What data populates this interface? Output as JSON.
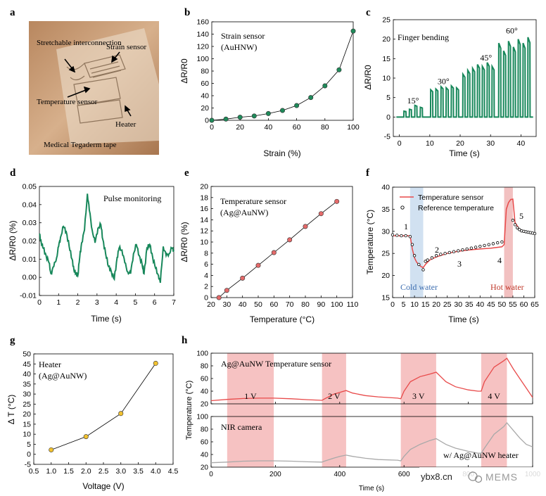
{
  "watermark": {
    "site": "ybx8.cn",
    "brand": "MEMS"
  },
  "chart_data": [
    {
      "panel": "a",
      "type": "photo",
      "labels": [
        "Stretchable interconnection",
        "Strain sensor",
        "Temperature sensor",
        "Heater",
        "Medical Tegaderm tape"
      ],
      "colors": {
        "skin": "#c9a27e",
        "tape": "#e8d7c2",
        "text": "#000000"
      }
    },
    {
      "panel": "b",
      "type": "scatter",
      "annotation": [
        "Strain sensor",
        "(AuHNW)"
      ],
      "xlabel": "Strain (%)",
      "ylabel": "ΔR/R0",
      "xlim": [
        0,
        100
      ],
      "ylim": [
        0,
        160
      ],
      "xticks": [
        0,
        20,
        40,
        60,
        80,
        100
      ],
      "yticks": [
        0,
        20,
        40,
        60,
        80,
        100,
        120,
        140,
        160
      ],
      "x": [
        0,
        10,
        20,
        30,
        40,
        50,
        60,
        70,
        80,
        90,
        100
      ],
      "y": [
        0,
        2,
        5,
        7,
        11,
        16,
        24,
        37,
        56,
        82,
        145
      ],
      "marker_color": "#1f8a5a"
    },
    {
      "panel": "c",
      "type": "line",
      "annotation": "Finger bending",
      "xlabel": "Time (s)",
      "ylabel": "ΔR/R0",
      "xlim": [
        -2,
        45
      ],
      "ylim": [
        -5,
        25
      ],
      "xticks": [
        0,
        10,
        20,
        30,
        40
      ],
      "yticks": [
        -5,
        0,
        5,
        10,
        15,
        20,
        25
      ],
      "angles": [
        {
          "label": "15°",
          "t": 4.5,
          "v": 3.5
        },
        {
          "label": "30°",
          "t": 14.5,
          "v": 8.5
        },
        {
          "label": "45°",
          "t": 28.5,
          "v": 14.5
        },
        {
          "label": "60°",
          "t": 37,
          "v": 21.5
        }
      ],
      "pulses": [
        [
          1.8,
          1.5
        ],
        [
          3.6,
          2
        ],
        [
          5.4,
          3
        ],
        [
          7.2,
          2.5
        ],
        [
          10.6,
          7
        ],
        [
          12.3,
          7.2
        ],
        [
          14,
          7.8
        ],
        [
          15.7,
          7.5
        ],
        [
          17.4,
          8
        ],
        [
          19.1,
          7.5
        ],
        [
          21.2,
          11
        ],
        [
          22.8,
          12
        ],
        [
          24.4,
          12.5
        ],
        [
          26,
          13.5
        ],
        [
          27.6,
          13
        ],
        [
          29.2,
          14
        ],
        [
          30.8,
          13
        ],
        [
          33,
          19
        ],
        [
          34.6,
          17
        ],
        [
          36.2,
          19.5
        ],
        [
          37.8,
          18
        ],
        [
          39.4,
          20
        ],
        [
          41,
          19
        ],
        [
          42.6,
          20.5
        ]
      ],
      "line_color": "#17875a"
    },
    {
      "panel": "d",
      "type": "line",
      "annotation": "Pulse monitoring",
      "xlabel": "Time (s)",
      "ylabel": "ΔR/R0 (%)",
      "xlim": [
        0,
        7
      ],
      "ylim": [
        -0.01,
        0.05
      ],
      "xticks": [
        0,
        1,
        2,
        3,
        4,
        5,
        6,
        7
      ],
      "yticks": [
        -0.01,
        0.0,
        0.01,
        0.02,
        0.03,
        0.04,
        0.05
      ],
      "ytick_labels": [
        "-0.01",
        "0.00",
        "0.01",
        "0.02",
        "0.03",
        "0.04",
        "0.05"
      ],
      "x": [
        0,
        0.1,
        0.2,
        0.35,
        0.5,
        0.6,
        0.75,
        0.9,
        1.0,
        1.1,
        1.25,
        1.4,
        1.55,
        1.7,
        1.8,
        1.9,
        2.0,
        2.1,
        2.2,
        2.35,
        2.5,
        2.6,
        2.75,
        2.9,
        3.05,
        3.2,
        3.3,
        3.45,
        3.6,
        3.75,
        3.9,
        4.05,
        4.15,
        4.3,
        4.45,
        4.6,
        4.75,
        4.9,
        5.05,
        5.2,
        5.35,
        5.45,
        5.6,
        5.75,
        5.9,
        6.05,
        6.2,
        6.3,
        6.45,
        6.6,
        6.75,
        6.9,
        7.0
      ],
      "y": [
        0.024,
        0.019,
        0.016,
        0.012,
        0.008,
        0.002,
        0.006,
        0.011,
        0.017,
        0.022,
        0.028,
        0.025,
        0.017,
        0.01,
        0.004,
        0.002,
        0.001,
        0.011,
        0.019,
        0.026,
        0.046,
        0.037,
        0.026,
        0.019,
        0.027,
        0.029,
        0.021,
        0.013,
        0.006,
        0.003,
        -0.001,
        0.011,
        0.016,
        0.015,
        0.008,
        0.003,
        0.002,
        0.013,
        0.018,
        0.012,
        0.007,
        0.002,
        0.016,
        0.018,
        0.011,
        0.005,
        0.001,
        -0.003,
        0.017,
        0.012,
        0.013,
        0.016,
        0.015
      ],
      "line_color": "#17875a"
    },
    {
      "panel": "e",
      "type": "scatter",
      "annotation": [
        "Temperature sensor",
        "(Ag@AuNW)"
      ],
      "xlabel": "Temperature (°C)",
      "ylabel": "ΔR/R0 (%)",
      "xlim": [
        20,
        110
      ],
      "ylim": [
        0,
        20
      ],
      "xticks": [
        20,
        30,
        40,
        50,
        60,
        70,
        80,
        90,
        100,
        110
      ],
      "yticks": [
        0,
        2,
        4,
        6,
        8,
        10,
        12,
        14,
        16,
        18,
        20
      ],
      "x": [
        25,
        30,
        40,
        50,
        60,
        70,
        80,
        90,
        100
      ],
      "y": [
        0,
        1.3,
        3.5,
        5.8,
        8.1,
        10.4,
        12.8,
        15.1,
        17.3
      ],
      "marker_color": "#e46a6a"
    },
    {
      "panel": "f",
      "type": "line",
      "xlabel": "Time (s)",
      "ylabel": "Temperature (°C)",
      "xlim": [
        0,
        65
      ],
      "ylim": [
        15,
        40
      ],
      "xticks": [
        0,
        5,
        10,
        15,
        20,
        25,
        30,
        35,
        40,
        45,
        50,
        55,
        60,
        65
      ],
      "yticks": [
        15,
        20,
        25,
        30,
        35,
        40
      ],
      "legend": [
        "Temperature sensor",
        "Reference temperature"
      ],
      "regions": [
        {
          "label": "Cold water",
          "x0": 8,
          "x1": 14,
          "color": "#c6d9ee"
        },
        {
          "label": "Hot water",
          "x0": 51,
          "x1": 55,
          "color": "#efb2b2"
        }
      ],
      "markers": [
        "1",
        "2",
        "3",
        "4",
        "5"
      ],
      "sensor": {
        "x": [
          0,
          4,
          8,
          9,
          10,
          11,
          12,
          13,
          14,
          15,
          17,
          20,
          25,
          30,
          35,
          40,
          45,
          50,
          51,
          52,
          53,
          54,
          55,
          56,
          58,
          60,
          63,
          65
        ],
        "y": [
          29,
          29,
          29,
          26,
          24,
          23,
          22.5,
          22,
          21.8,
          22.5,
          23.5,
          24.2,
          25,
          25.5,
          25.8,
          26,
          26.2,
          26.5,
          27,
          35,
          36.5,
          37.2,
          37.3,
          32,
          30.5,
          30,
          29.6,
          29.5
        ]
      },
      "reference": {
        "x": [
          0,
          2,
          4,
          6,
          8,
          9,
          10,
          12,
          14,
          15,
          16,
          18,
          20,
          22,
          24,
          26,
          28,
          30,
          32,
          34,
          36,
          38,
          40,
          42,
          44,
          46,
          48,
          50,
          55,
          56,
          57,
          58,
          59,
          60,
          61,
          62,
          63,
          64,
          65
        ],
        "y": [
          29.2,
          29.1,
          29,
          29,
          28.8,
          27,
          24.5,
          22.5,
          21.3,
          23.2,
          23.5,
          24,
          24.5,
          24.8,
          25,
          25.2,
          25.4,
          25.6,
          25.8,
          26,
          26.2,
          26.4,
          26.6,
          26.8,
          27,
          27.2,
          27.4,
          27.6,
          32.5,
          31.5,
          30.8,
          30.4,
          30.1,
          30,
          29.9,
          29.8,
          29.7,
          29.6,
          29.5
        ]
      },
      "line_color": "#e84a4a"
    },
    {
      "panel": "g",
      "type": "scatter",
      "annotation": [
        "Heater",
        "(Ag@AuNW)"
      ],
      "xlabel": "Voltage (V)",
      "ylabel": "Δ T (°C)",
      "xlim": [
        0.5,
        4.5
      ],
      "ylim": [
        -5,
        50
      ],
      "xticks": [
        0.5,
        1,
        1.5,
        2,
        2.5,
        3,
        3.5,
        4,
        4.5
      ],
      "xtick_labels": [
        "0.5",
        "1.0",
        "1.5",
        "2.0",
        "2.5",
        "3.0",
        "3.5",
        "4.0",
        "4.5"
      ],
      "yticks": [
        -5,
        0,
        5,
        10,
        15,
        20,
        25,
        30,
        35,
        40,
        45,
        50
      ],
      "x": [
        1.0,
        2.0,
        3.0,
        4.0
      ],
      "y": [
        2.2,
        8.8,
        20.3,
        45.3
      ],
      "marker_color": "#f2c230"
    },
    {
      "panel": "h",
      "type": "line",
      "xlabel": "Time (s)",
      "ylabel": "Temperature (°C)",
      "xlim": [
        0,
        1000
      ],
      "xticks": [
        0,
        200,
        400,
        600,
        800,
        1000
      ],
      "xtick_labels": [
        "0",
        "200",
        "400",
        "600",
        "800",
        "1000"
      ],
      "top": {
        "annotation": "Ag@AuNW Temperature sensor",
        "ylim": [
          20,
          100
        ],
        "yticks": [
          20,
          40,
          60,
          80,
          100
        ],
        "x": [
          0,
          50,
          100,
          150,
          195,
          250,
          300,
          345,
          350,
          380,
          400,
          420,
          440,
          480,
          520,
          580,
          590,
          600,
          620,
          650,
          680,
          700,
          730,
          760,
          800,
          830,
          840,
          850,
          880,
          910,
          920,
          940,
          960,
          980,
          1000
        ],
        "y": [
          25,
          27,
          28.5,
          29,
          29,
          28,
          26.5,
          25.5,
          27,
          35,
          38,
          41,
          37,
          33,
          31,
          29,
          28,
          40,
          55,
          63,
          67,
          70,
          55,
          47,
          42,
          40,
          40,
          55,
          78,
          88,
          92,
          75,
          60,
          45,
          30
        ],
        "line_color": "#e84a4a"
      },
      "bottom": {
        "annotation": "NIR camera",
        "legend": "w/ Ag@AuNW heater",
        "ylim": [
          20,
          100
        ],
        "yticks": [
          20,
          40,
          60,
          80,
          100
        ],
        "x": [
          0,
          50,
          100,
          150,
          195,
          250,
          300,
          345,
          350,
          380,
          400,
          420,
          440,
          480,
          520,
          580,
          590,
          600,
          620,
          650,
          680,
          700,
          730,
          760,
          800,
          830,
          840,
          850,
          880,
          910,
          920,
          940,
          960,
          980,
          1000
        ],
        "y": [
          27,
          28,
          29.5,
          30,
          30,
          29.5,
          28.5,
          28,
          29,
          34,
          37,
          39,
          37,
          34,
          32,
          31,
          30,
          37,
          48,
          56,
          62,
          65,
          56,
          50,
          45,
          42,
          42,
          50,
          72,
          84,
          90,
          78,
          66,
          56,
          52
        ],
        "line_color": "#a9a9a9"
      },
      "regions": [
        {
          "label": "1 V",
          "x0": 50,
          "x1": 195
        },
        {
          "label": "2 V",
          "x0": 345,
          "x1": 420
        },
        {
          "label": "3 V",
          "x0": 590,
          "x1": 700
        },
        {
          "label": "4 V",
          "x0": 840,
          "x1": 920
        }
      ],
      "region_color": "#f4b7b7"
    }
  ]
}
